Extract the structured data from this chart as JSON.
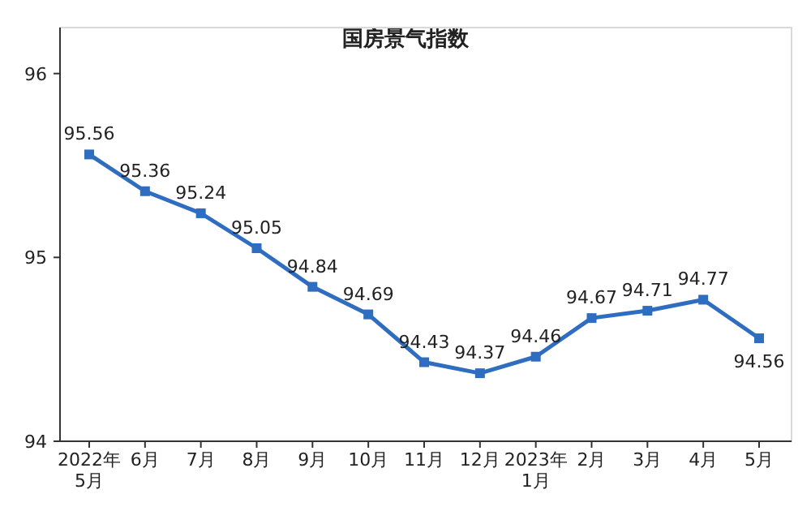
{
  "chart_data": {
    "type": "line",
    "title": "国房景气指数",
    "categories": [
      "2022年\n5月",
      "6月",
      "7月",
      "8月",
      "9月",
      "10月",
      "11月",
      "12月",
      "2023年\n1月",
      "2月",
      "3月",
      "4月",
      "5月"
    ],
    "series": [
      {
        "color": "#2e6dbf",
        "values": [
          95.56,
          95.36,
          95.24,
          95.05,
          94.84,
          94.69,
          94.43,
          94.37,
          94.46,
          94.67,
          94.71,
          94.77,
          94.56
        ]
      }
    ],
    "ylim": [
      94,
      96.25
    ],
    "yticks": [
      94,
      95,
      96
    ],
    "data_labels": true,
    "marker": "square",
    "line_style": "solid",
    "grid": false
  }
}
